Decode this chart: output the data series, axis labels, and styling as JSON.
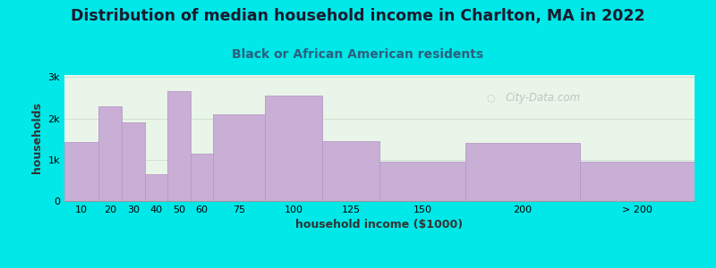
{
  "title": "Distribution of median household income in Charlton, MA in 2022",
  "subtitle": "Black or African American residents",
  "xlabel": "household income ($1000)",
  "ylabel": "households",
  "bar_color": "#c9aed5",
  "bar_edge_color": "#b899c8",
  "background_color": "#00e8e8",
  "plot_bg_left": "#e8f5e8",
  "plot_bg_right": "#f8faf5",
  "categories": [
    "10",
    "20",
    "30",
    "40",
    "50",
    "60",
    "75",
    "100",
    "125",
    "150",
    "200",
    "> 200"
  ],
  "values": [
    1420,
    2300,
    1900,
    650,
    2650,
    1150,
    2100,
    2550,
    1450,
    950,
    1400,
    950
  ],
  "bin_edges": [
    0,
    15,
    25,
    35,
    45,
    55,
    65,
    87.5,
    112.5,
    137.5,
    175,
    225,
    275
  ],
  "yticks": [
    0,
    1000,
    2000,
    3000
  ],
  "ytick_labels": [
    "0",
    "1k",
    "2k",
    "3k"
  ],
  "ylim": [
    0,
    3050
  ],
  "xlim": [
    0,
    275
  ],
  "watermark": "City-Data.com",
  "title_fontsize": 12.5,
  "subtitle_fontsize": 10,
  "axis_label_fontsize": 9,
  "tick_fontsize": 8,
  "title_color": "#1a1a2e",
  "subtitle_color": "#2a6080"
}
